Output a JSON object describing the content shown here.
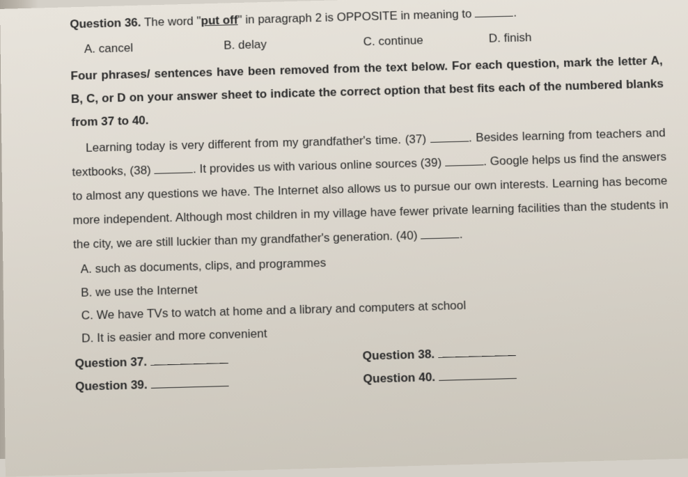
{
  "q36": {
    "label": "Question 36.",
    "pre_text": " The word \"",
    "keyword": "put off",
    "post_text": "\" in paragraph 2 is OPPOSITE in meaning to ",
    "tail": ".",
    "choices": {
      "a": "A. cancel",
      "b": "B. delay",
      "c": "C. continue",
      "d": "D. finish"
    }
  },
  "instruction": "Four phrases/ sentences have been removed from the text below. For each question, mark the letter A, B, C, or D on your answer sheet to indicate the correct option that best fits each of the numbered blanks from 37 to 40.",
  "passage": {
    "p1": "Learning today is very different from my grandfather's time. (37) ",
    "p2": ". Besides learning from teachers and textbooks, (38) ",
    "p3": ". It provides us with various online sources (39) ",
    "p4": ". Google helps us find the answers to almost any questions we have. The Internet also allows us to pursue our own interests. Learning has become more independent. Although most children in my village have fewer private learning facilities than the students in the city, we are still luckier than my grandfather's generation. (40) ",
    "p5": "."
  },
  "options": {
    "a": "A. such as documents, clips, and programmes",
    "b": "B. we use the Internet",
    "c": "C. We have TVs to watch at home and a library and computers at school",
    "d": "D. It is easier and more convenient"
  },
  "answers": {
    "q37": "Question 37. ",
    "q38": "Question 38. ",
    "q39": "Question 39. ",
    "q40": "Question 40. "
  }
}
